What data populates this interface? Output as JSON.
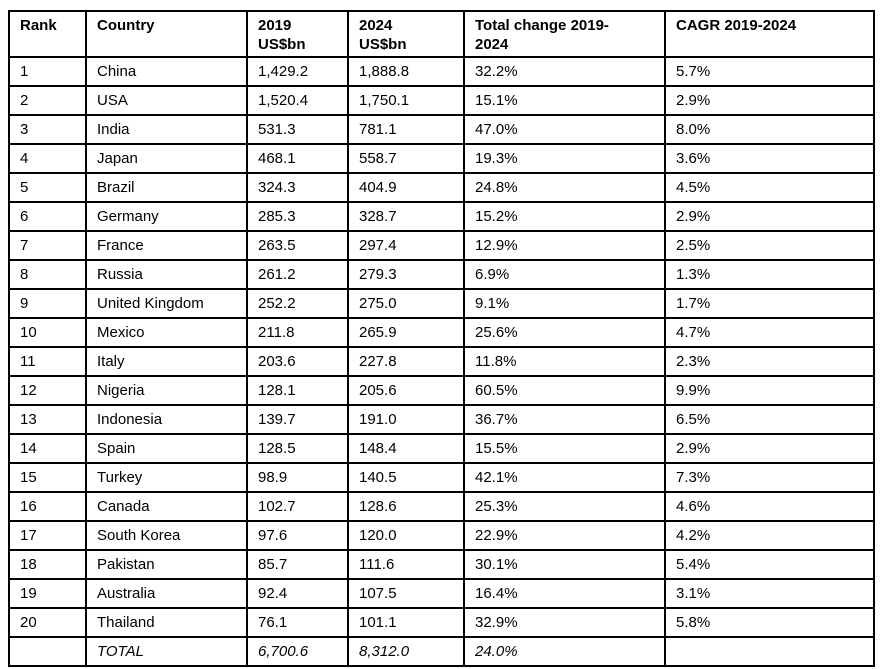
{
  "page": {
    "background_color": "#ffffff",
    "text_color": "#000000",
    "border_color": "#000000"
  },
  "table": {
    "column_keys": [
      "rank",
      "country",
      "value-2019",
      "value-2024",
      "total-change",
      "cagr"
    ],
    "columns": [
      {
        "key": "rank",
        "label": "Rank"
      },
      {
        "key": "country",
        "label": "Country"
      },
      {
        "key": "value-2019",
        "label": "2019\nUS$bn"
      },
      {
        "key": "value-2024",
        "label": "2024\nUS$bn"
      },
      {
        "key": "total-change",
        "label": "Total change 2019-\n2024"
      },
      {
        "key": "cagr",
        "label": "CAGR 2019-2024"
      }
    ],
    "rows": [
      [
        "1",
        "China",
        "1,429.2",
        "1,888.8",
        "32.2%",
        "5.7%"
      ],
      [
        "2",
        "USA",
        "1,520.4",
        "1,750.1",
        "15.1%",
        "2.9%"
      ],
      [
        "3",
        "India",
        "531.3",
        "781.1",
        "47.0%",
        "8.0%"
      ],
      [
        "4",
        "Japan",
        "468.1",
        "558.7",
        "19.3%",
        "3.6%"
      ],
      [
        "5",
        "Brazil",
        "324.3",
        "404.9",
        "24.8%",
        "4.5%"
      ],
      [
        "6",
        "Germany",
        "285.3",
        "328.7",
        "15.2%",
        "2.9%"
      ],
      [
        "7",
        "France",
        "263.5",
        "297.4",
        "12.9%",
        "2.5%"
      ],
      [
        "8",
        "Russia",
        "261.2",
        "279.3",
        "6.9%",
        "1.3%"
      ],
      [
        "9",
        "United Kingdom",
        "252.2",
        "275.0",
        "9.1%",
        "1.7%"
      ],
      [
        "10",
        "Mexico",
        "211.8",
        "265.9",
        "25.6%",
        "4.7%"
      ],
      [
        "11",
        "Italy",
        "203.6",
        "227.8",
        "11.8%",
        "2.3%"
      ],
      [
        "12",
        "Nigeria",
        "128.1",
        "205.6",
        "60.5%",
        "9.9%"
      ],
      [
        "13",
        "Indonesia",
        "139.7",
        "191.0",
        "36.7%",
        "6.5%"
      ],
      [
        "14",
        "Spain",
        "128.5",
        "148.4",
        "15.5%",
        "2.9%"
      ],
      [
        "15",
        "Turkey",
        "98.9",
        "140.5",
        "42.1%",
        "7.3%"
      ],
      [
        "16",
        "Canada",
        "102.7",
        "128.6",
        "25.3%",
        "4.6%"
      ],
      [
        "17",
        "South Korea",
        "97.6",
        "120.0",
        "22.9%",
        "4.2%"
      ],
      [
        "18",
        "Pakistan",
        "85.7",
        "111.6",
        "30.1%",
        "5.4%"
      ],
      [
        "19",
        "Australia",
        "92.4",
        "107.5",
        "16.4%",
        "3.1%"
      ],
      [
        "20",
        "Thailand",
        "76.1",
        "101.1",
        "32.9%",
        "5.8%"
      ]
    ],
    "total_row": [
      "",
      "TOTAL",
      "6,700.6",
      "8,312.0",
      "24.0%",
      ""
    ]
  }
}
